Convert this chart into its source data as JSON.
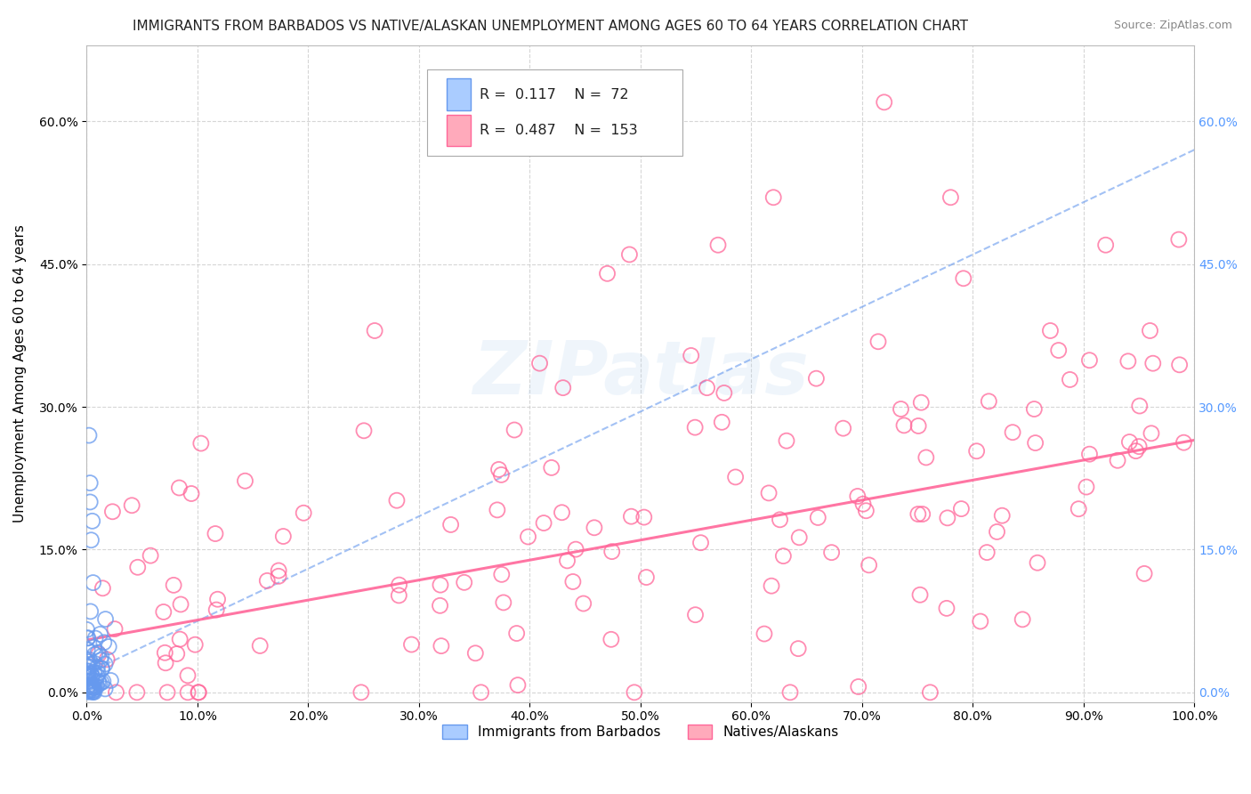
{
  "title": "IMMIGRANTS FROM BARBADOS VS NATIVE/ALASKAN UNEMPLOYMENT AMONG AGES 60 TO 64 YEARS CORRELATION CHART",
  "source": "Source: ZipAtlas.com",
  "xlabel": "",
  "ylabel": "Unemployment Among Ages 60 to 64 years",
  "xlim": [
    0.0,
    1.0
  ],
  "ylim": [
    -0.01,
    0.68
  ],
  "xticks": [
    0.0,
    0.1,
    0.2,
    0.3,
    0.4,
    0.5,
    0.6,
    0.7,
    0.8,
    0.9,
    1.0
  ],
  "xticklabels": [
    "0.0%",
    "10.0%",
    "20.0%",
    "30.0%",
    "40.0%",
    "50.0%",
    "60.0%",
    "70.0%",
    "80.0%",
    "90.0%",
    "100.0%"
  ],
  "yticks": [
    0.0,
    0.15,
    0.3,
    0.45,
    0.6
  ],
  "yticklabels": [
    "0.0%",
    "15.0%",
    "30.0%",
    "45.0%",
    "60.0%"
  ],
  "legend_labels": [
    "Immigrants from Barbados",
    "Natives/Alaskans"
  ],
  "blue_R": 0.117,
  "blue_N": 72,
  "pink_R": 0.487,
  "pink_N": 153,
  "blue_color": "#6699ee",
  "pink_color": "#ff6699",
  "watermark": "ZIPatlas",
  "background_color": "#ffffff",
  "title_fontsize": 11,
  "seed": 42,
  "blue_intercept": 0.02,
  "blue_slope": 0.55,
  "pink_intercept": 0.055,
  "pink_slope": 0.21,
  "right_tick_color": "#5599ff"
}
